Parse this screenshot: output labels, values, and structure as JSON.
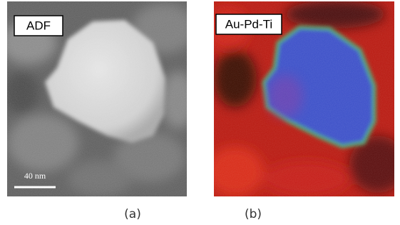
{
  "panels": [
    {
      "label": "ADF",
      "scale_bar": "40 nm",
      "caption": "(a)"
    },
    {
      "label": "Au-Pd-Ti",
      "caption": "(b)"
    }
  ]
}
